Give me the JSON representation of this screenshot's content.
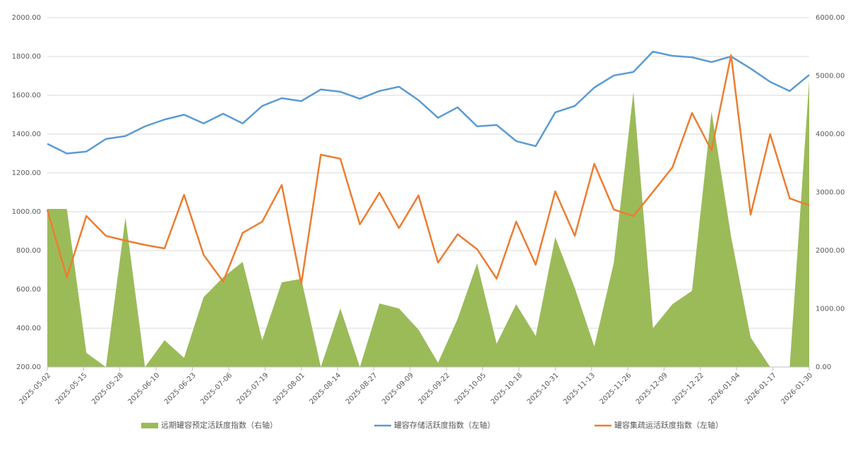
{
  "chart_data": {
    "type": "line",
    "x": [
      "2025-05-02",
      "2025-05-09",
      "2025-05-16",
      "2025-05-23",
      "2025-05-30",
      "2025-06-06",
      "2025-06-13",
      "2025-06-20",
      "2025-06-27",
      "2025-07-04",
      "2025-07-11",
      "2025-07-18",
      "2025-07-25",
      "2025-08-01",
      "2025-08-08",
      "2025-08-15",
      "2025-08-22",
      "2025-08-29",
      "2025-09-05",
      "2025-09-12",
      "2025-09-19",
      "2025-09-26",
      "2025-10-03",
      "2025-10-10",
      "2025-10-17",
      "2025-10-24",
      "2025-10-31",
      "2025-11-07",
      "2025-11-14",
      "2025-11-21",
      "2025-11-28",
      "2025-12-05",
      "2025-12-12",
      "2025-12-19",
      "2025-12-26",
      "2026-01-02",
      "2026-01-09",
      "2026-01-16",
      "2026-01-23",
      "2026-01-30"
    ],
    "xlim": [
      "2025-05-02",
      "2026-01-30"
    ],
    "xticks": [
      "2025-05-02",
      "2025-05-15",
      "2025-05-28",
      "2025-06-10",
      "2025-06-23",
      "2025-07-06",
      "2025-07-19",
      "2025-08-01",
      "2025-08-14",
      "2025-08-27",
      "2025-09-09",
      "2025-09-22",
      "2025-10-05",
      "2025-10-18",
      "2025-10-31",
      "2025-11-13",
      "2025-11-26",
      "2025-12-09",
      "2025-12-22",
      "2026-01-04",
      "2026-01-17",
      "2026-01-30"
    ],
    "ylim": [
      200,
      2000
    ],
    "yticks": [
      {
        "value": 200,
        "label": "200.00"
      },
      {
        "value": 400,
        "label": "400.00"
      },
      {
        "value": 600,
        "label": "600.00"
      },
      {
        "value": 800,
        "label": "800.00"
      },
      {
        "value": 1000,
        "label": "1000.00"
      },
      {
        "value": 1200,
        "label": "1200.00"
      },
      {
        "value": 1400,
        "label": "1400.00"
      },
      {
        "value": 1600,
        "label": "1600.00"
      },
      {
        "value": 1800,
        "label": "1800.00"
      },
      {
        "value": 2000,
        "label": "2000.00"
      }
    ],
    "y2lim": [
      0,
      6000
    ],
    "y2ticks": [
      {
        "value": 0,
        "label": "0.00"
      },
      {
        "value": 1000,
        "label": "1000.00"
      },
      {
        "value": 2000,
        "label": "2000.00"
      },
      {
        "value": 3000,
        "label": "3000.00"
      },
      {
        "value": 4000,
        "label": "4000.00"
      },
      {
        "value": 5000,
        "label": "5000.00"
      },
      {
        "value": 6000,
        "label": "6000.00"
      }
    ],
    "grid": true,
    "legend": "bottom",
    "series": [
      {
        "name": "远期罐容预定活跃度指数（右轴）",
        "type": "area",
        "axis": "y2",
        "color": "#9bbb59",
        "values": [
          2715,
          2715,
          242,
          0,
          2570,
          0,
          460,
          158,
          1200,
          1539,
          1806,
          460,
          1455,
          1515,
          0,
          1006,
          0,
          1091,
          1006,
          642,
          73,
          824,
          1782,
          400,
          1079,
          533,
          2230,
          1358,
          351,
          1794,
          4727,
          667,
          1079,
          1309,
          4388,
          2242,
          509,
          0,
          0,
          4933
        ]
      },
      {
        "name": "罐容存储活跃度指数（左轴）",
        "type": "line",
        "color": "#5b9bd5",
        "values": [
          1350,
          1300,
          1310,
          1375,
          1390,
          1440,
          1475,
          1500,
          1455,
          1505,
          1455,
          1545,
          1585,
          1570,
          1630,
          1618,
          1582,
          1622,
          1644,
          1575,
          1484,
          1538,
          1440,
          1447,
          1364,
          1338,
          1512,
          1545,
          1640,
          1702,
          1720,
          1825,
          1803,
          1796,
          1771,
          1800,
          1738,
          1669,
          1622,
          1705
        ]
      },
      {
        "name": "罐容集疏运活跃度指数（左轴）",
        "type": "line",
        "color": "#ed7d31",
        "values": [
          1010,
          662,
          978,
          876,
          851,
          829,
          811,
          1087,
          778,
          640,
          891,
          949,
          1138,
          629,
          1294,
          1273,
          935,
          1098,
          916,
          1084,
          738,
          884,
          807,
          655,
          949,
          727,
          1105,
          876,
          1247,
          1011,
          978,
          1102,
          1229,
          1509,
          1316,
          1807,
          985,
          1400,
          1069,
          1033
        ]
      }
    ]
  }
}
